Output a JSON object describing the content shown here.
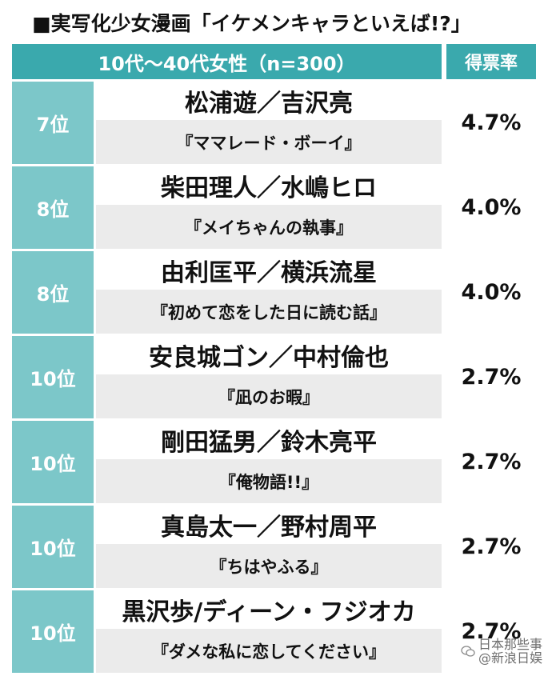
{
  "title": "■実写化少女漫画「イケメンキャラといえば!?」",
  "header": {
    "group_label": "10代〜40代女性（n=300）",
    "rate_label": "得票率"
  },
  "rows": [
    {
      "rank": "7位",
      "names": "松浦遊／吉沢亮",
      "work": "『ママレード・ボーイ』",
      "rate": "4.7%"
    },
    {
      "rank": "8位",
      "names": "柴田理人／水嶋ヒロ",
      "work": "『メイちゃんの執事』",
      "rate": "4.0%"
    },
    {
      "rank": "8位",
      "names": "由利匡平／横浜流星",
      "work": "『初めて恋をした日に読む話』",
      "rate": "4.0%"
    },
    {
      "rank": "10位",
      "names": "安良城ゴン／中村倫也",
      "work": "『凪のお暇』",
      "rate": "2.7%"
    },
    {
      "rank": "10位",
      "names": "剛田猛男／鈴木亮平",
      "work": "『俺物語!!』",
      "rate": "2.7%"
    },
    {
      "rank": "10位",
      "names": "真島太一／野村周平",
      "work": "『ちはやふる』",
      "rate": "2.7%"
    },
    {
      "rank": "10位",
      "names": "黒沢歩/ディーン・フジオカ",
      "work": "『ダメな私に恋してください』",
      "rate": "2.7%"
    }
  ],
  "watermark": {
    "line1": "日本那些事",
    "line2": "@新浪日娱",
    "icon": "wechat-icon"
  },
  "colors": {
    "header_bg": "#3aa9ad",
    "rank_bg": "#7cc7c9",
    "work_bg": "#ebebeb"
  }
}
